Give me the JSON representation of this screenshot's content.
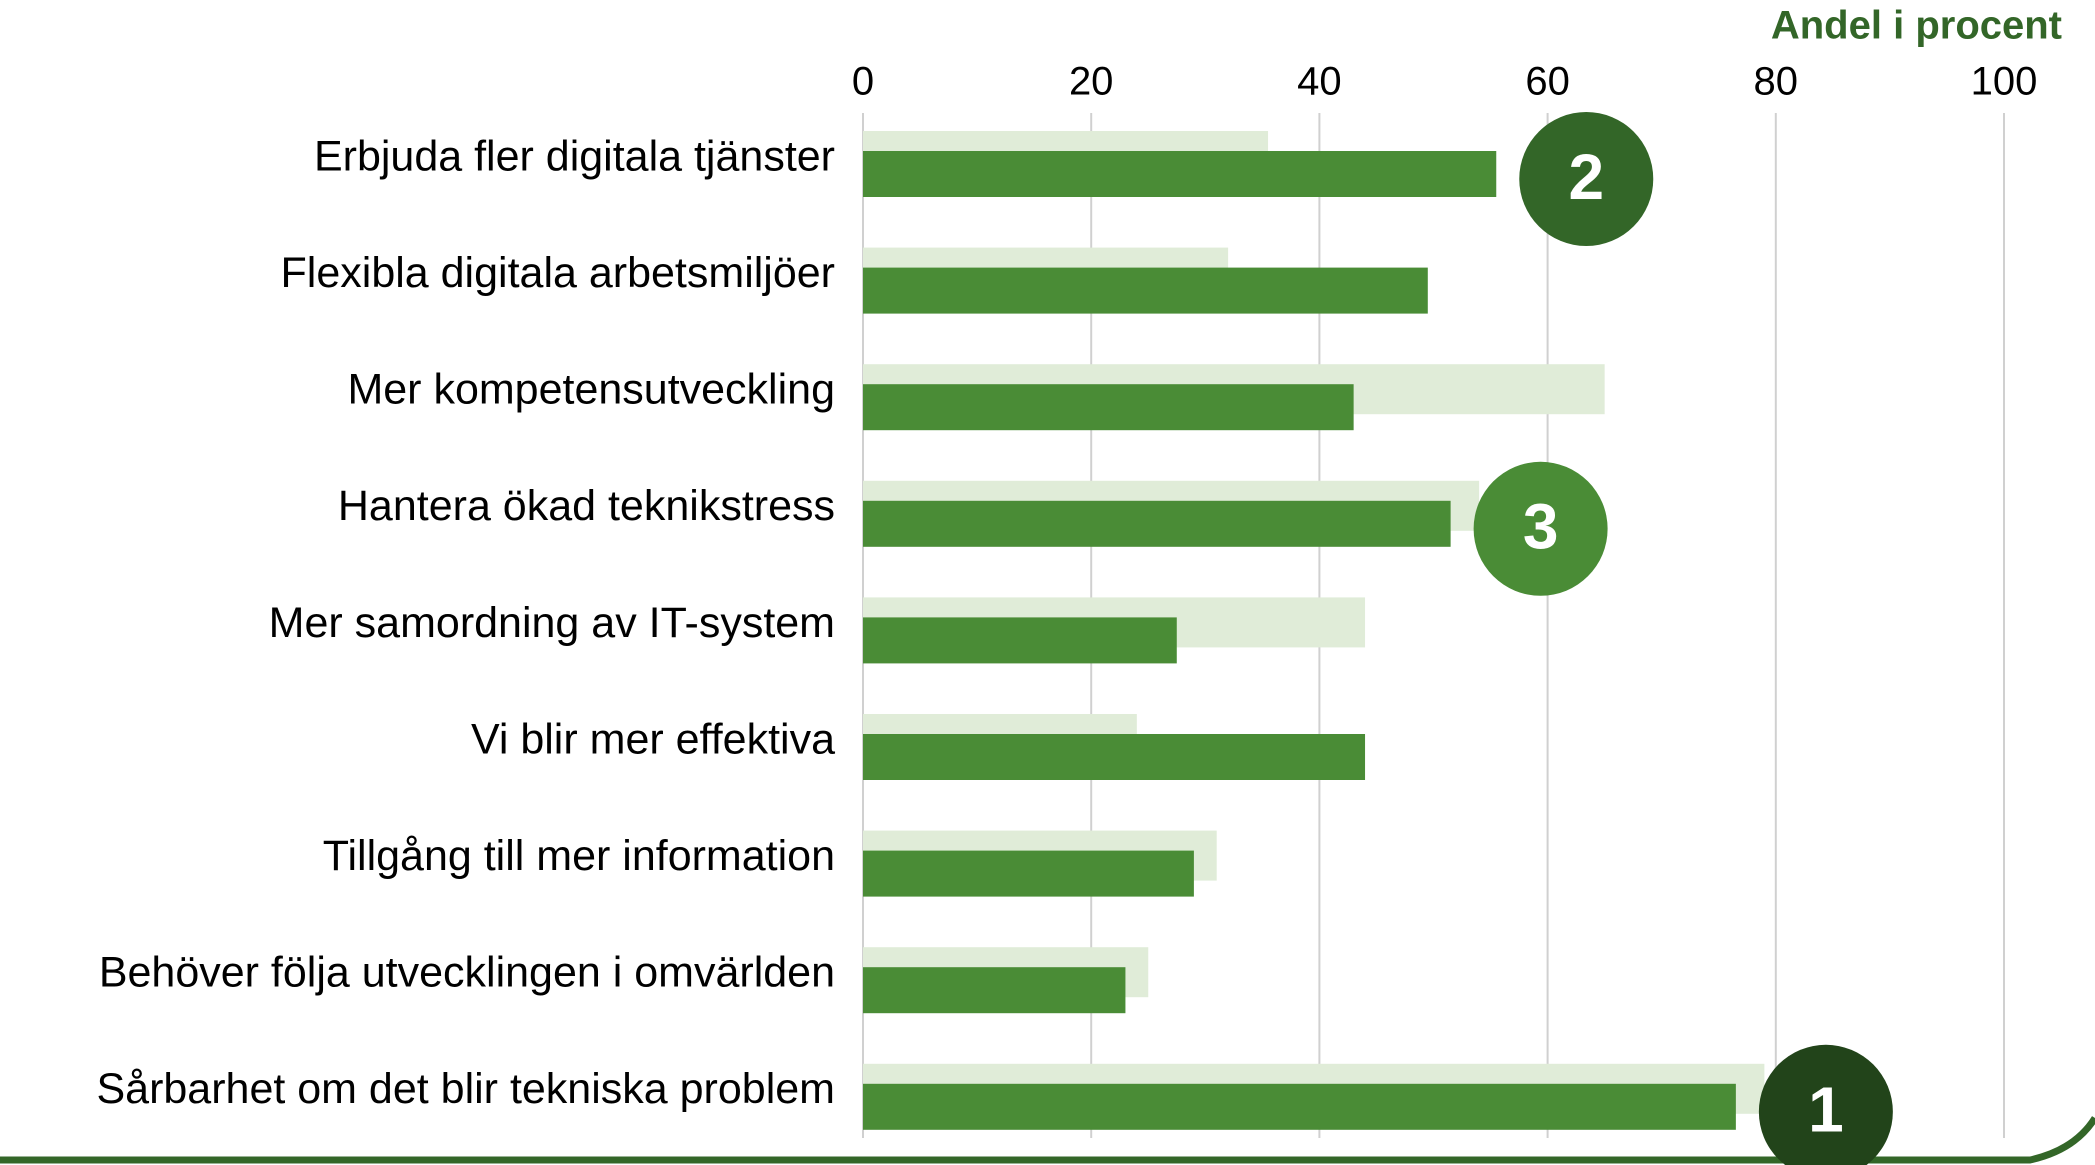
{
  "chart_data": {
    "type": "bar",
    "orientation": "horizontal",
    "axis_label": "Andel i procent",
    "categories": [
      "Erbjuda fler digitala tjänster",
      "Flexibla digitala arbetsmiljöer",
      "Mer kompetensutveckling",
      "Hantera ökad teknikstress",
      "Mer samordning av IT-system",
      "Vi blir mer effektiva",
      "Tillgång till mer information",
      "Behöver följa utvecklingen i omvärlden",
      "Sårbarhet om det blir tekniska problem"
    ],
    "series": [
      {
        "color": "#e0ecd8",
        "values": [
          35.5,
          32,
          65,
          54,
          44,
          24,
          31,
          25,
          79
        ]
      },
      {
        "color": "#4a8c36",
        "values": [
          55.5,
          49.5,
          43,
          51.5,
          27.5,
          44,
          29,
          23,
          76.5
        ]
      }
    ],
    "ranks": [
      2,
      null,
      null,
      3,
      null,
      null,
      null,
      null,
      1
    ],
    "rank_colors": [
      "#336628",
      null,
      null,
      "#4a8c36",
      null,
      null,
      null,
      null,
      "#22441a"
    ],
    "xlim": [
      0,
      100
    ],
    "xticks": [
      0,
      20,
      40,
      60,
      80,
      100
    ],
    "grid": true
  }
}
